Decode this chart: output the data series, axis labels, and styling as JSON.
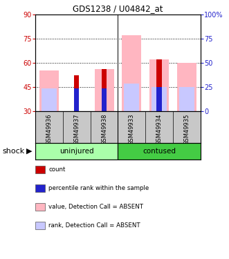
{
  "title": "GDS1238 / U04842_at",
  "samples": [
    "GSM49936",
    "GSM49937",
    "GSM49938",
    "GSM49933",
    "GSM49934",
    "GSM49935"
  ],
  "ylim_left": [
    30,
    90
  ],
  "ylim_right": [
    0,
    100
  ],
  "yticks_left": [
    30,
    45,
    60,
    75,
    90
  ],
  "yticks_right": [
    0,
    25,
    50,
    75,
    100
  ],
  "ytick_right_labels": [
    "0",
    "25",
    "50",
    "75",
    "100%"
  ],
  "gridlines": [
    45,
    60,
    75
  ],
  "red_bars_top": [
    30,
    52,
    56,
    30,
    62,
    30
  ],
  "blue_bars_top": [
    30,
    44,
    44,
    30,
    45,
    30
  ],
  "pink_bars_top": [
    55,
    30,
    56,
    77,
    62,
    60
  ],
  "lightblue_bars_top": [
    44,
    30,
    30,
    47,
    45,
    45
  ],
  "bar_bottom": 30,
  "colors": {
    "red": "#CC0000",
    "blue": "#2222CC",
    "pink": "#FFB6C1",
    "lightblue": "#C8C8FF",
    "gray_bg": "#C8C8C8",
    "light_green": "#AAFFAA",
    "green": "#44CC44"
  },
  "left_axis_color": "#CC0000",
  "right_axis_color": "#2222CC",
  "shock_label": "shock"
}
